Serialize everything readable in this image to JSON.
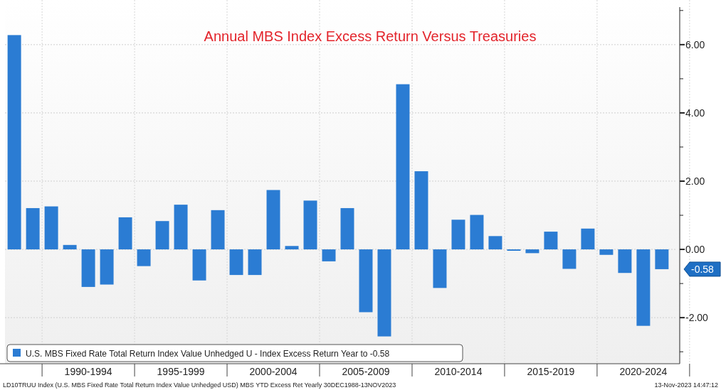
{
  "chart_data": {
    "type": "bar",
    "title": "Annual MBS Index Excess Return Versus Treasuries",
    "categories": [
      null,
      null,
      null,
      null,
      "1990-1994",
      null,
      null,
      null,
      null,
      "1995-1999",
      null,
      null,
      null,
      null,
      "2000-2004",
      null,
      null,
      null,
      null,
      "2005-2009",
      null,
      null,
      null,
      null,
      "2010-2014",
      null,
      null,
      null,
      null,
      "2015-2019",
      null,
      null,
      null,
      null,
      "2020-2024",
      null
    ],
    "series": [
      {
        "name": "U.S. MBS Fixed Rate Total Return Index Value Unhedged U - Index Excess Return Year to  -0.58",
        "color": "#2b7cd3",
        "values": [
          6.28,
          1.21,
          1.26,
          0.13,
          -1.1,
          -1.03,
          0.94,
          -0.49,
          0.83,
          1.31,
          -0.91,
          1.15,
          -0.75,
          -0.75,
          1.74,
          0.1,
          1.43,
          -0.35,
          1.21,
          -1.84,
          -2.55,
          4.84,
          2.29,
          -1.13,
          0.87,
          1.01,
          0.39,
          -0.04,
          -0.11,
          0.52,
          -0.57,
          0.61,
          -0.16,
          -0.69,
          -2.24,
          -0.58
        ]
      }
    ],
    "ylim": [
      -3.35,
      7.1
    ],
    "yticks": [
      {
        "value": -3,
        "label": null
      },
      {
        "value": -2,
        "label": "-2.00"
      },
      {
        "value": -1,
        "label": null
      },
      {
        "value": 0,
        "label": "0.00"
      },
      {
        "value": 1,
        "label": null
      },
      {
        "value": 2,
        "label": "2.00"
      },
      {
        "value": 3,
        "label": null
      },
      {
        "value": 4,
        "label": "4.00"
      },
      {
        "value": 5,
        "label": null
      },
      {
        "value": 6,
        "label": "6.00"
      },
      {
        "value": 7,
        "label": null
      }
    ],
    "grid": true,
    "legend": "bottom left",
    "value_labels": [
      null,
      null,
      null,
      null,
      null,
      null,
      null,
      null,
      null,
      null,
      null,
      null,
      null,
      null,
      null,
      null,
      null,
      null,
      null,
      null,
      null,
      null,
      null,
      null,
      null,
      null,
      null,
      null,
      null,
      null,
      null,
      null,
      null,
      null,
      null,
      "-0.58"
    ],
    "annotations": [
      "LD10TRUU Index (U.S. MBS Fixed Rate Total Return Index Value Unhedged USD) MBS YTD Excess Ret  Yearly 30DEC1988-13NOV2023",
      "13-Nov-2023 14:47:12"
    ]
  }
}
